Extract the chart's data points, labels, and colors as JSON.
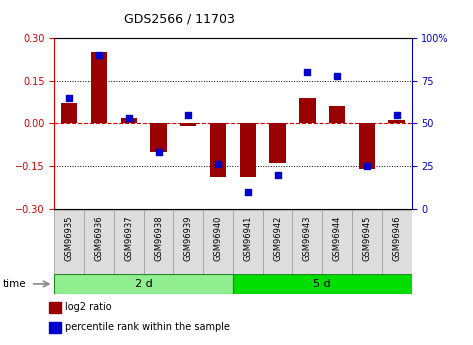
{
  "title": "GDS2566 / 11703",
  "samples": [
    "GSM96935",
    "GSM96936",
    "GSM96937",
    "GSM96938",
    "GSM96939",
    "GSM96940",
    "GSM96941",
    "GSM96942",
    "GSM96943",
    "GSM96944",
    "GSM96945",
    "GSM96946"
  ],
  "log2_ratio": [
    0.07,
    0.25,
    0.02,
    -0.1,
    -0.01,
    -0.19,
    -0.19,
    -0.14,
    0.09,
    0.06,
    -0.16,
    0.01
  ],
  "percentile_rank": [
    65,
    90,
    53,
    33,
    55,
    26,
    10,
    20,
    80,
    78,
    25,
    55
  ],
  "groups": [
    {
      "label": "2 d",
      "start": 0,
      "end": 6,
      "color": "#90EE90"
    },
    {
      "label": "5 d",
      "start": 6,
      "end": 12,
      "color": "#00DD00"
    }
  ],
  "bar_color": "#990000",
  "dot_color": "#0000CC",
  "ylim_left": [
    -0.3,
    0.3
  ],
  "ylim_right": [
    0,
    100
  ],
  "yticks_left": [
    -0.3,
    -0.15,
    0.0,
    0.15,
    0.3
  ],
  "yticks_right": [
    0,
    25,
    50,
    75,
    100
  ],
  "hline_color": "#CC0000",
  "dotted_color": "black",
  "bar_width": 0.55,
  "time_label": "time",
  "legend_items": [
    {
      "label": "log2 ratio",
      "color": "#990000"
    },
    {
      "label": "percentile rank within the sample",
      "color": "#0000CC"
    }
  ],
  "bg_color": "white",
  "plot_bg": "white",
  "tick_label_color_left": "#CC0000",
  "tick_label_color_right": "#0000CC",
  "label_cell_color": "#DDDDDD",
  "label_cell_edge": "#999999"
}
